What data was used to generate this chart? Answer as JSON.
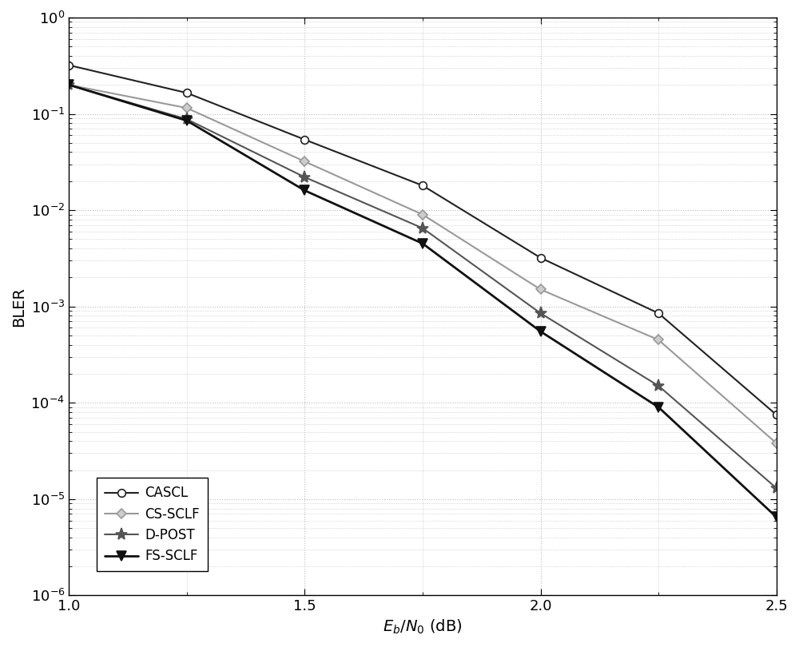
{
  "title": "",
  "xlabel": "$E_b/N_0$ (dB)",
  "ylabel": "BLER",
  "xlim": [
    1.0,
    2.5
  ],
  "ylim_log": [
    -6,
    0
  ],
  "xticks": [
    1.0,
    1.5,
    2.0,
    2.5
  ],
  "series": [
    {
      "label": "CASCL",
      "color": "#222222",
      "marker": "o",
      "markersize": 7,
      "linewidth": 1.5,
      "markerfacecolor": "white",
      "markeredgecolor": "#222222",
      "x": [
        1.0,
        1.25,
        1.5,
        1.75,
        2.0,
        2.25,
        2.5
      ],
      "y": [
        0.32,
        0.165,
        0.054,
        0.018,
        0.0032,
        0.00085,
        7.5e-05
      ]
    },
    {
      "label": "CS-SCLF",
      "color": "#999999",
      "marker": "D",
      "markersize": 6,
      "linewidth": 1.5,
      "markerfacecolor": "#cccccc",
      "markeredgecolor": "#999999",
      "x": [
        1.0,
        1.25,
        1.5,
        1.75,
        2.0,
        2.25,
        2.5
      ],
      "y": [
        0.2,
        0.115,
        0.032,
        0.009,
        0.0015,
        0.00045,
        3.8e-05
      ]
    },
    {
      "label": "D-POST",
      "color": "#555555",
      "marker": "*",
      "markersize": 11,
      "linewidth": 1.5,
      "markerfacecolor": "#555555",
      "markeredgecolor": "#555555",
      "x": [
        1.0,
        1.25,
        1.5,
        1.75,
        2.0,
        2.25,
        2.5
      ],
      "y": [
        0.2,
        0.088,
        0.022,
        0.0065,
        0.00085,
        0.00015,
        1.3e-05
      ]
    },
    {
      "label": "FS-SCLF",
      "color": "#111111",
      "marker": "v",
      "markersize": 8,
      "linewidth": 2.0,
      "markerfacecolor": "#111111",
      "markeredgecolor": "#111111",
      "x": [
        1.0,
        1.25,
        1.5,
        1.75,
        2.0,
        2.25,
        2.5
      ],
      "y": [
        0.2,
        0.085,
        0.016,
        0.0045,
        0.00055,
        9e-05,
        6.5e-06
      ]
    }
  ],
  "grid_color": "#bbbbbb",
  "grid_linestyle": ":",
  "background_color": "#ffffff",
  "legend_loc": "lower left",
  "legend_fontsize": 12,
  "tick_labelsize": 13,
  "axis_labelsize": 14
}
